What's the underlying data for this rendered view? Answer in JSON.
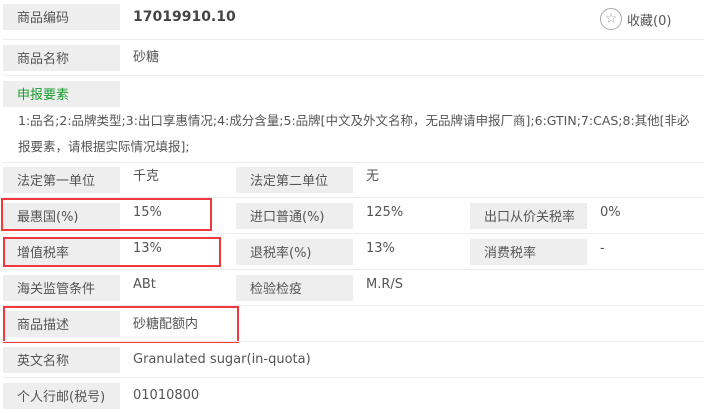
{
  "code": {
    "label": "商品编码",
    "value": "17019910.10"
  },
  "favorite": {
    "label": "收藏(0)",
    "icon": "star-icon"
  },
  "name": {
    "label": "商品名称",
    "value": "砂糖"
  },
  "declaration": {
    "label": "申报要素",
    "value": "1:品名;2:品牌类型;3:出口享惠情况;4:成分含量;5:品牌[中文及外文名称，无品牌请申报厂商];6:GTIN;7:CAS;8:其他[非必报要素，请根据实际情况填报];"
  },
  "unit1": {
    "label": "法定第一单位",
    "value": "千克"
  },
  "unit2": {
    "label": "法定第二单位",
    "value": "无"
  },
  "mfn": {
    "label": "最惠国(%)",
    "value": "15%"
  },
  "general": {
    "label": "进口普通(%)",
    "value": "125%"
  },
  "export_tax": {
    "label": "出口从价关税率",
    "value": "0%"
  },
  "vat": {
    "label": "增值税率",
    "value": "13%"
  },
  "rebate": {
    "label": "退税率(%)",
    "value": "13%"
  },
  "consumption": {
    "label": "消费税率",
    "value": "-"
  },
  "supervision": {
    "label": "海关监管条件",
    "value": "ABt"
  },
  "inspection": {
    "label": "检验检疫",
    "value": "M.R/S"
  },
  "description": {
    "label": "商品描述",
    "value": "砂糖配额内"
  },
  "english": {
    "label": "英文名称",
    "value": "Granulated sugar(in-quota)"
  },
  "postal": {
    "label": "个人行邮(税号)",
    "value": "01010800"
  },
  "colors": {
    "highlight": "#f0383d",
    "green": "#1a9b2f",
    "label_bg": "#eeeeee"
  }
}
